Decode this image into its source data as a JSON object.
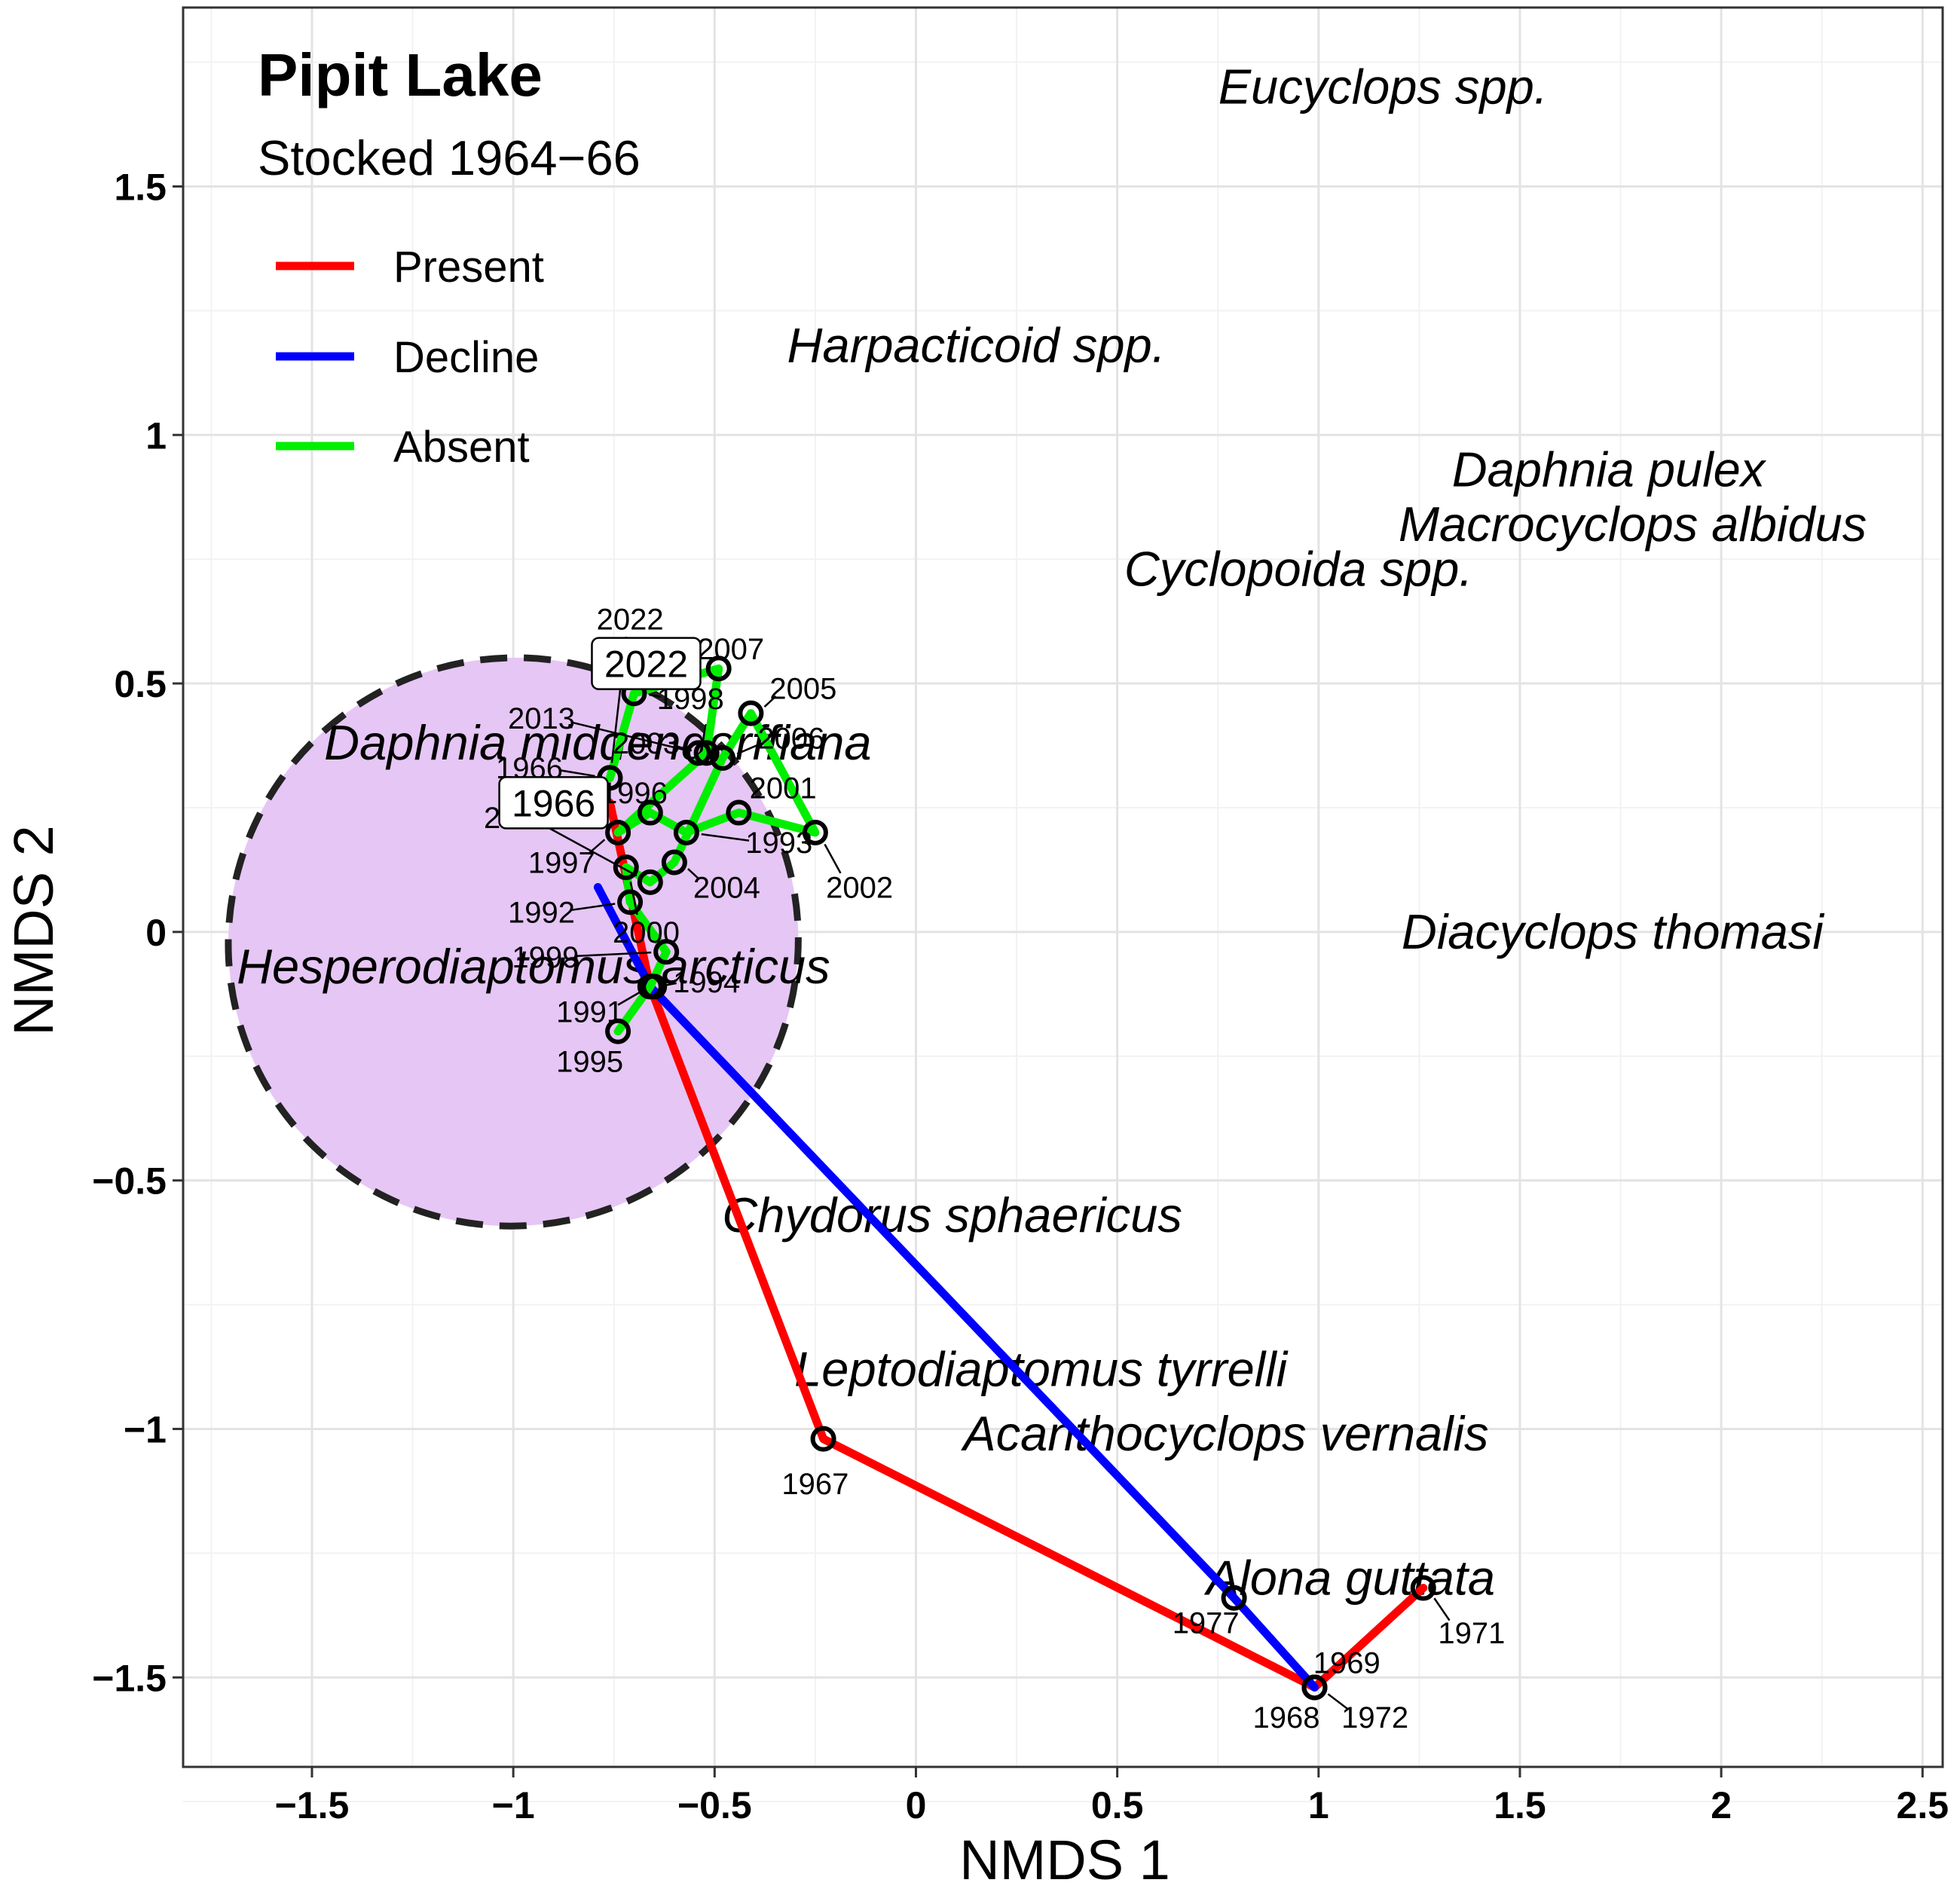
{
  "chart_data": {
    "type": "scatter",
    "title": "Pipit Lake",
    "subtitle": "Stocked 1964−66",
    "xlabel": "NMDS 1",
    "ylabel": "NMDS 2",
    "xlim": [
      -1.82,
      2.55
    ],
    "ylim": [
      -1.68,
      1.86
    ],
    "x_ticks": [
      -1.5,
      -1,
      -0.5,
      0,
      0.5,
      1,
      1.5,
      2,
      2.5
    ],
    "x_tick_labels": [
      "−1.5",
      "−1",
      "−0.5",
      "0",
      "0.5",
      "1",
      "1.5",
      "2",
      "2.5"
    ],
    "y_ticks": [
      -1.5,
      -1,
      -0.5,
      0,
      0.5,
      1,
      1.5
    ],
    "y_tick_labels": [
      "−1.5",
      "−1",
      "−0.5",
      "0",
      "0.5",
      "1",
      "1.5"
    ],
    "grid": true,
    "legend": {
      "position": "top-left",
      "items": [
        {
          "label": "Present",
          "color": "#ff0000"
        },
        {
          "label": "Decline",
          "color": "#0000ff"
        },
        {
          "label": "Absent",
          "color": "#00ee00"
        }
      ]
    },
    "ellipse": {
      "cx": -1.0,
      "cy": -0.02,
      "rx": 0.71,
      "ry": 0.57,
      "rotation_deg": 36,
      "fill": "#e6c6f5",
      "stroke": "#222222"
    },
    "points": [
      {
        "year": "1966",
        "x": -0.76,
        "y": 0.31,
        "lx": -0.96,
        "ly": 0.33
      },
      {
        "year": "1967",
        "x": -0.23,
        "y": -1.02,
        "lx": -0.25,
        "ly": -1.11
      },
      {
        "year": "1968",
        "x": 0.99,
        "y": -1.52,
        "lx": 0.92,
        "ly": -1.58
      },
      {
        "year": "1969",
        "x": 0.99,
        "y": -1.52,
        "lx": 1.07,
        "ly": -1.47
      },
      {
        "year": "1971",
        "x": 1.26,
        "y": -1.32,
        "lx": 1.38,
        "ly": -1.41
      },
      {
        "year": "1972",
        "x": 0.99,
        "y": -1.52,
        "lx": 1.14,
        "ly": -1.58
      },
      {
        "year": "1977",
        "x": 0.79,
        "y": -1.34,
        "lx": 0.72,
        "ly": -1.39
      },
      {
        "year": "1991",
        "x": -0.65,
        "y": -0.11,
        "lx": -0.81,
        "ly": -0.16
      },
      {
        "year": "1992",
        "x": -0.71,
        "y": 0.06,
        "lx": -0.93,
        "ly": 0.04
      },
      {
        "year": "1993",
        "x": -0.57,
        "y": 0.2,
        "lx": -0.34,
        "ly": 0.18
      },
      {
        "year": "1994",
        "x": -0.66,
        "y": -0.11,
        "lx": -0.52,
        "ly": -0.1
      },
      {
        "year": "1995",
        "x": -0.74,
        "y": -0.2,
        "lx": -0.81,
        "ly": -0.26
      },
      {
        "year": "1996",
        "x": -0.66,
        "y": 0.24,
        "lx": -0.7,
        "ly": 0.28
      },
      {
        "year": "1997",
        "x": -0.74,
        "y": 0.2,
        "lx": -0.88,
        "ly": 0.14
      },
      {
        "year": "1998",
        "x": -0.7,
        "y": 0.48,
        "lx": -0.56,
        "ly": 0.47
      },
      {
        "year": "1999",
        "x": -0.62,
        "y": -0.04,
        "lx": -0.92,
        "ly": -0.05
      },
      {
        "year": "2000",
        "x": -0.72,
        "y": 0.13,
        "lx": -0.67,
        "ly": 0.0
      },
      {
        "year": "2001",
        "x": -0.44,
        "y": 0.24,
        "lx": -0.33,
        "ly": 0.29
      },
      {
        "year": "2002",
        "x": -0.25,
        "y": 0.2,
        "lx": -0.14,
        "ly": 0.09
      },
      {
        "year": "2003",
        "x": -0.52,
        "y": 0.36,
        "lx": -0.67,
        "ly": 0.38
      },
      {
        "year": "2004",
        "x": -0.6,
        "y": 0.14,
        "lx": -0.47,
        "ly": 0.09
      },
      {
        "year": "2005",
        "x": -0.41,
        "y": 0.44,
        "lx": -0.28,
        "ly": 0.49
      },
      {
        "year": "2006",
        "x": -0.48,
        "y": 0.35,
        "lx": -0.31,
        "ly": 0.39
      },
      {
        "year": "2007",
        "x": -0.49,
        "y": 0.53,
        "lx": -0.46,
        "ly": 0.57
      },
      {
        "year": "2013",
        "x": -0.54,
        "y": 0.36,
        "lx": -0.93,
        "ly": 0.43
      },
      {
        "year": "2020",
        "x": -0.66,
        "y": 0.1,
        "lx": -0.99,
        "ly": 0.23
      },
      {
        "year": "2022",
        "x": -0.76,
        "y": 0.31,
        "lx": -0.71,
        "ly": 0.63
      }
    ],
    "boxed_labels": [
      {
        "text": "1966",
        "x": -0.9,
        "y": 0.26
      },
      {
        "text": "2022",
        "x": -0.67,
        "y": 0.54
      }
    ],
    "series": [
      {
        "name": "Present",
        "color": "#ff0000",
        "path": [
          [
            -0.76,
            0.26
          ],
          [
            -0.66,
            -0.11
          ],
          [
            -0.23,
            -1.02
          ],
          [
            0.99,
            -1.52
          ],
          [
            1.26,
            -1.32
          ]
        ]
      },
      {
        "name": "Decline",
        "color": "#0000ff",
        "path": [
          [
            -0.79,
            0.09
          ],
          [
            -0.66,
            -0.11
          ],
          [
            0.79,
            -1.34
          ],
          [
            0.99,
            -1.52
          ]
        ]
      },
      {
        "name": "Absent",
        "color": "#00ee00",
        "path": [
          [
            -0.76,
            0.31
          ],
          [
            -0.7,
            0.48
          ],
          [
            -0.49,
            0.53
          ],
          [
            -0.52,
            0.36
          ],
          [
            -0.74,
            0.2
          ],
          [
            -0.66,
            0.24
          ],
          [
            -0.57,
            0.2
          ],
          [
            -0.44,
            0.24
          ],
          [
            -0.25,
            0.2
          ],
          [
            -0.41,
            0.44
          ],
          [
            -0.48,
            0.35
          ],
          [
            -0.6,
            0.14
          ],
          [
            -0.66,
            0.1
          ],
          [
            -0.72,
            0.13
          ],
          [
            -0.71,
            0.06
          ],
          [
            -0.62,
            -0.04
          ],
          [
            -0.66,
            -0.11
          ],
          [
            -0.74,
            -0.2
          ]
        ]
      }
    ],
    "species": [
      {
        "name": "Eucyclops spp.",
        "x": 1.16,
        "y": 1.7
      },
      {
        "name": "Harpacticoid spp.",
        "x": 0.15,
        "y": 1.18
      },
      {
        "name": "Daphnia pulex",
        "x": 1.72,
        "y": 0.93
      },
      {
        "name": "Macrocyclops albidus",
        "x": 1.78,
        "y": 0.82
      },
      {
        "name": "Cyclopoida spp.",
        "x": 0.95,
        "y": 0.73
      },
      {
        "name": "Daphnia middendorffiana",
        "x": -0.79,
        "y": 0.38
      },
      {
        "name": "Diacyclops thomasi",
        "x": 1.73,
        "y": 0.0
      },
      {
        "name": "Hesperodiaptomus arcticus",
        "x": -0.95,
        "y": -0.07
      },
      {
        "name": "Chydorus sphaericus",
        "x": 0.09,
        "y": -0.57
      },
      {
        "name": "Leptodiaptomus tyrrelli",
        "x": 0.31,
        "y": -0.88
      },
      {
        "name": "Acanthocyclops vernalis",
        "x": 0.77,
        "y": -1.01
      },
      {
        "name": "Alona guttata",
        "x": 1.08,
        "y": -1.3
      }
    ]
  }
}
